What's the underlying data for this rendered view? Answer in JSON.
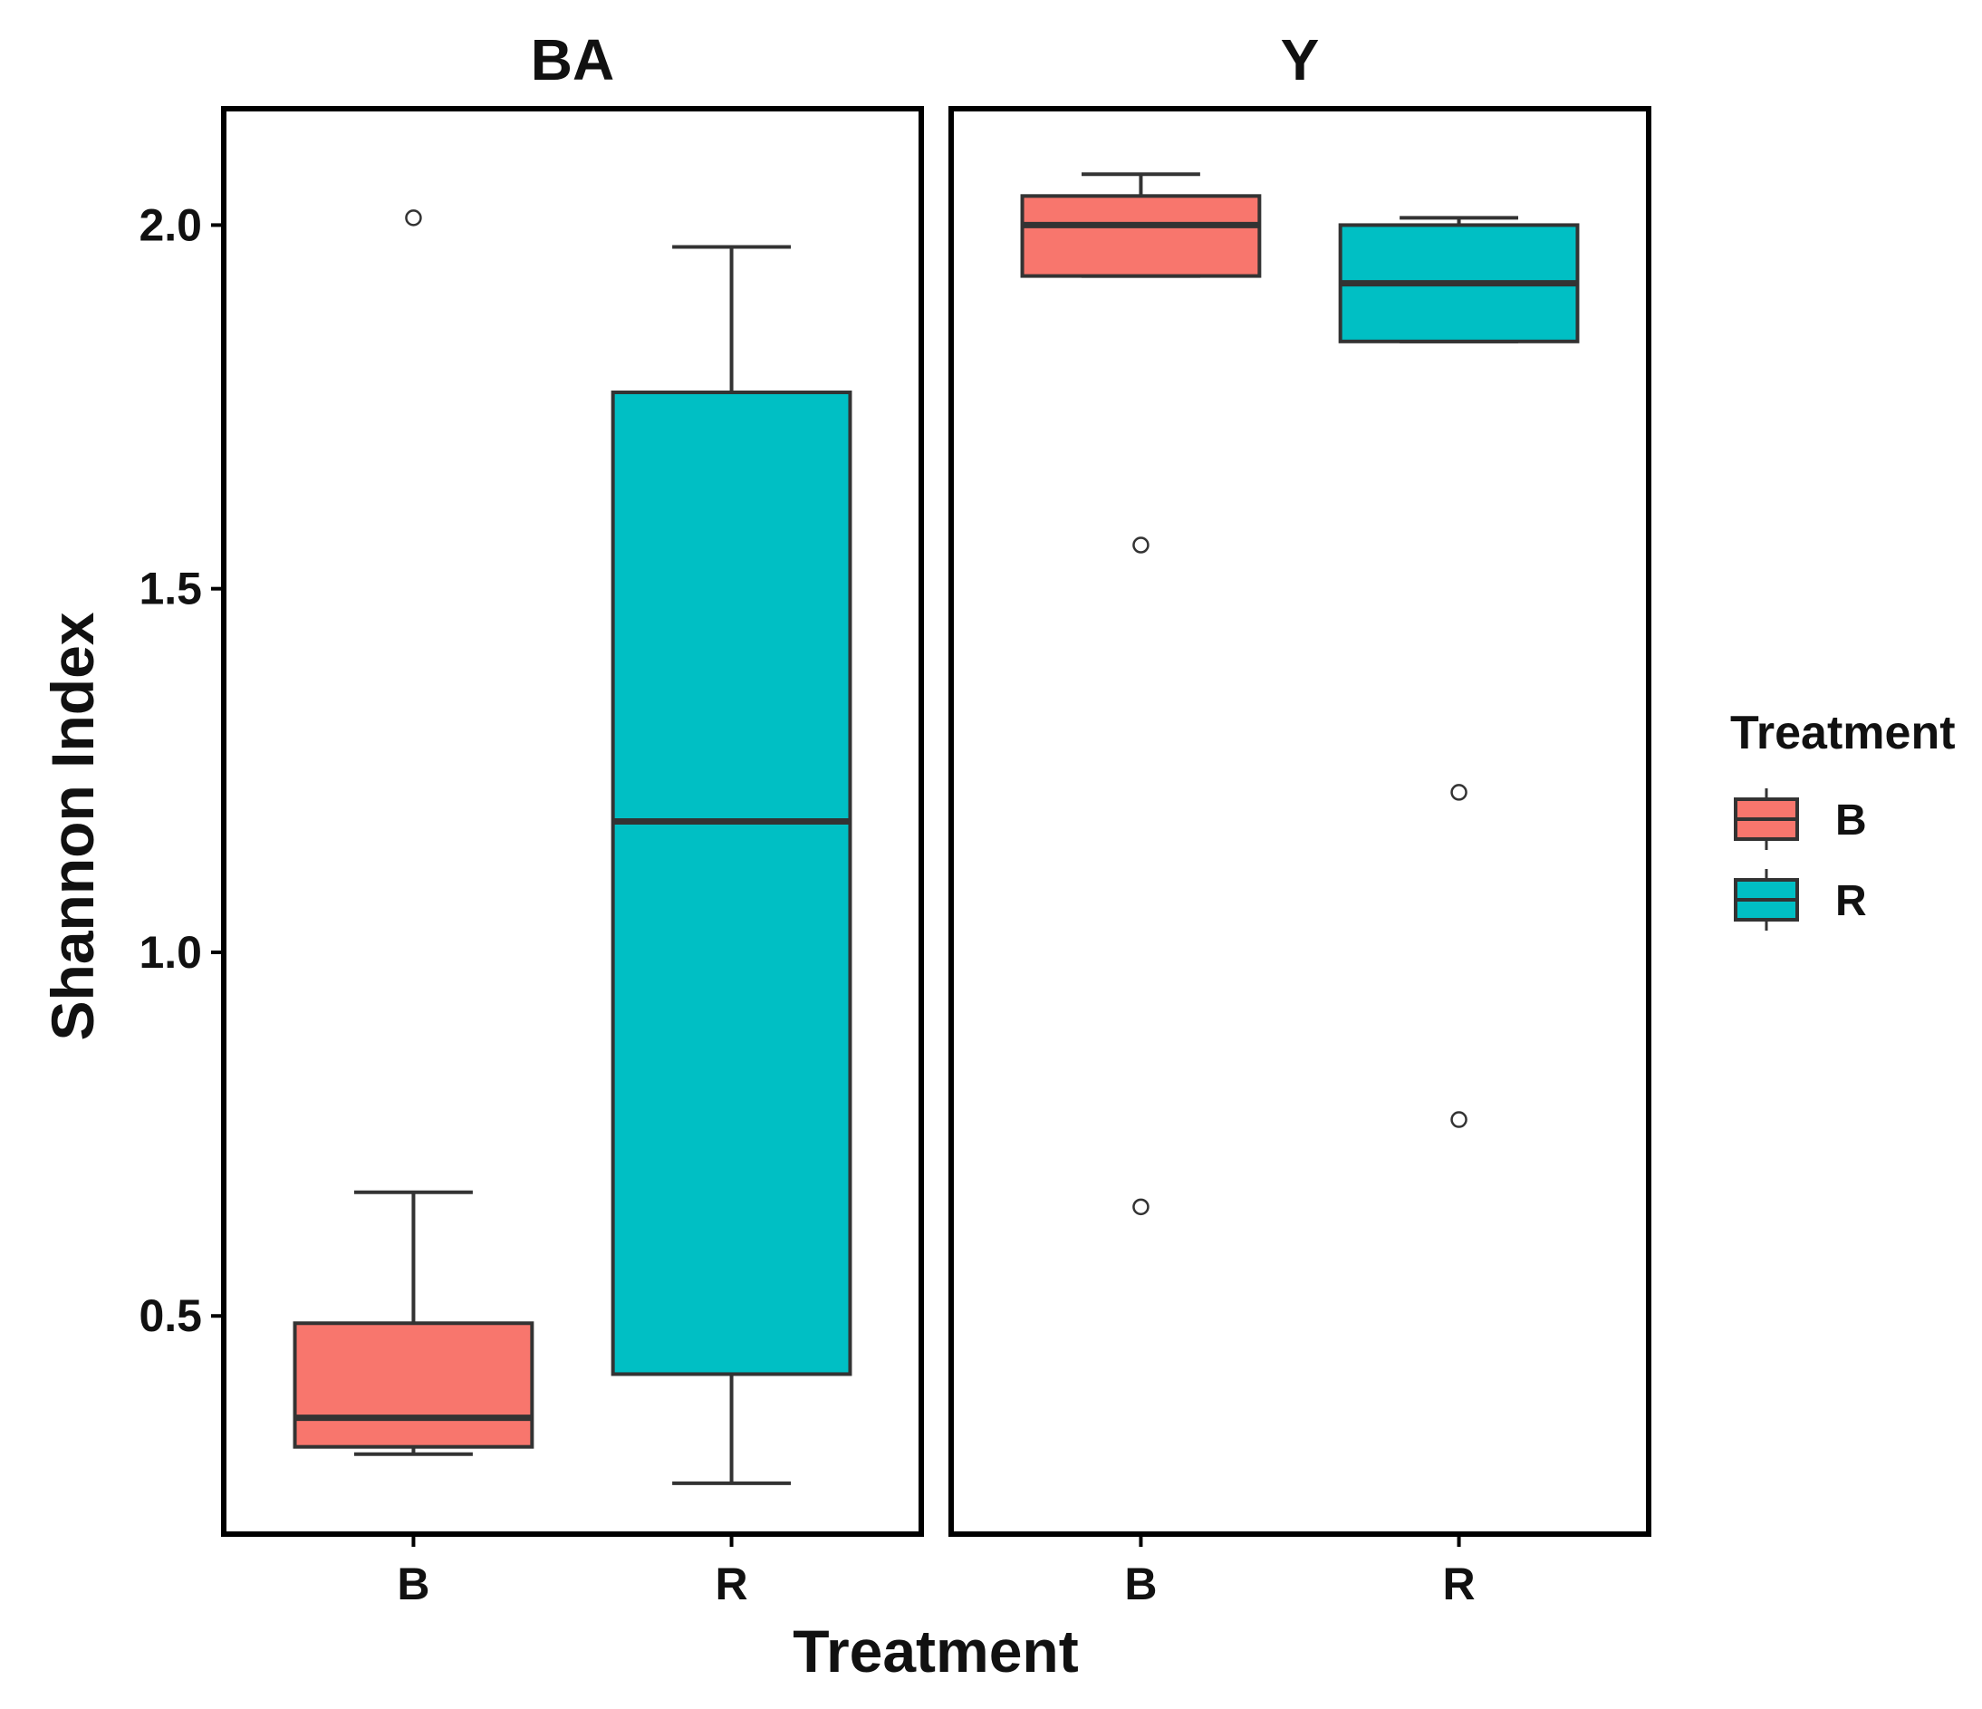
{
  "chart_data": {
    "type": "boxplot",
    "ylabel": "Shannon Index",
    "xlabel": "Treatment",
    "ylim": [
      0.2,
      2.16
    ],
    "yticks": [
      0.5,
      1.0,
      1.5,
      2.0
    ],
    "ytick_labels": [
      "0.5",
      "1.0",
      "1.5",
      "2.0"
    ],
    "categories": [
      "B",
      "R"
    ],
    "grid": false,
    "legend": {
      "title": "Treatment",
      "placement": "right",
      "entries": [
        {
          "label": "B",
          "color": "#F8766D"
        },
        {
          "label": "R",
          "color": "#00BFC4"
        }
      ]
    },
    "panels": [
      {
        "strip": "BA",
        "boxes": [
          {
            "category": "B",
            "whisker_low": 0.31,
            "q1": 0.32,
            "median": 0.36,
            "q3": 0.49,
            "whisker_high": 0.67,
            "outliers": [
              2.01
            ]
          },
          {
            "category": "R",
            "whisker_low": 0.27,
            "q1": 0.42,
            "median": 1.18,
            "q3": 1.77,
            "whisker_high": 1.97,
            "outliers": []
          }
        ]
      },
      {
        "strip": "Y",
        "boxes": [
          {
            "category": "B",
            "whisker_low": 1.93,
            "q1": 1.93,
            "median": 2.0,
            "q3": 2.04,
            "whisker_high": 2.07,
            "outliers": [
              1.56,
              0.65
            ]
          },
          {
            "category": "R",
            "whisker_low": 1.84,
            "q1": 1.84,
            "median": 1.92,
            "q3": 2.0,
            "whisker_high": 2.01,
            "outliers": [
              1.22,
              0.77
            ]
          }
        ]
      }
    ]
  },
  "colors": {
    "B": "#F8766D",
    "R": "#00BFC4",
    "box_stroke": "#333333",
    "frame": "#000000"
  }
}
